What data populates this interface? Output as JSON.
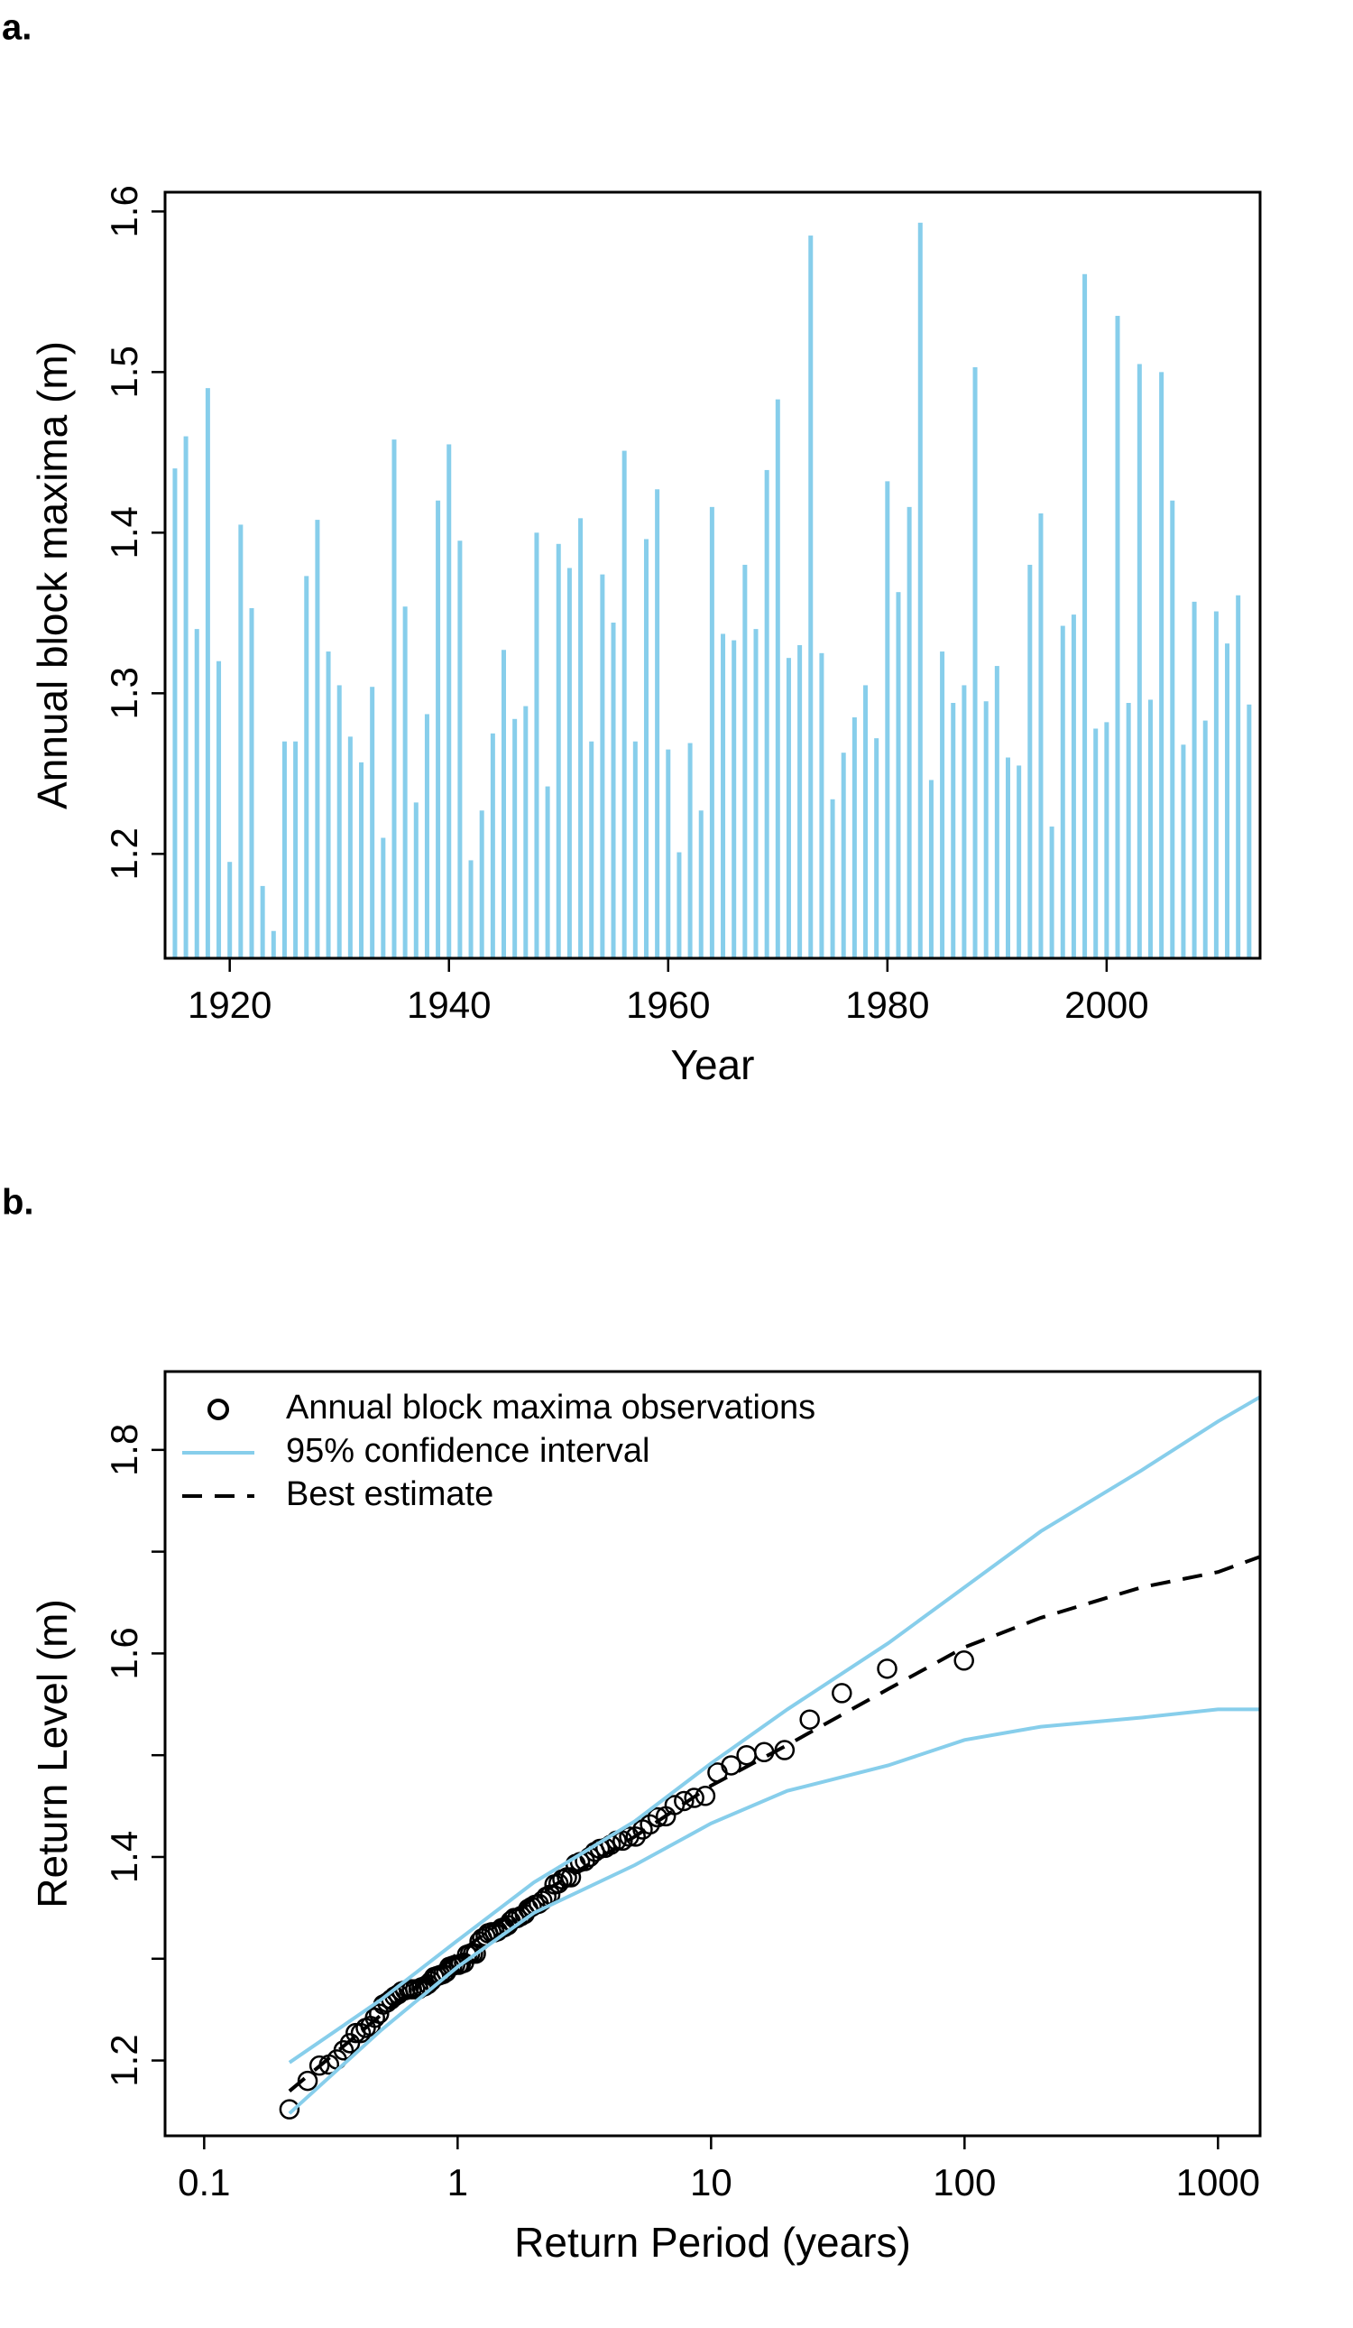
{
  "chart_data": [
    {
      "type": "bar",
      "panel_label": "a.",
      "xlabel": "Year",
      "ylabel": "Annual block maxima (m)",
      "color": "#87ceeb",
      "x": [
        1915,
        1916,
        1917,
        1918,
        1919,
        1920,
        1921,
        1922,
        1923,
        1924,
        1925,
        1926,
        1927,
        1928,
        1929,
        1930,
        1931,
        1932,
        1933,
        1934,
        1935,
        1936,
        1937,
        1938,
        1939,
        1940,
        1941,
        1942,
        1943,
        1944,
        1945,
        1946,
        1947,
        1948,
        1949,
        1950,
        1951,
        1952,
        1953,
        1954,
        1955,
        1956,
        1957,
        1958,
        1959,
        1960,
        1961,
        1962,
        1963,
        1964,
        1965,
        1966,
        1967,
        1968,
        1969,
        1970,
        1971,
        1972,
        1973,
        1974,
        1975,
        1976,
        1977,
        1978,
        1979,
        1980,
        1981,
        1982,
        1983,
        1984,
        1985,
        1986,
        1987,
        1988,
        1989,
        1990,
        1991,
        1992,
        1993,
        1994,
        1995,
        1996,
        1997,
        1998,
        1999,
        2000,
        2001,
        2002,
        2003,
        2004,
        2005,
        2006,
        2007,
        2008,
        2009,
        2010,
        2011,
        2012,
        2013
      ],
      "values": [
        1.44,
        1.46,
        1.34,
        1.49,
        1.32,
        1.195,
        1.405,
        1.353,
        1.18,
        1.152,
        1.27,
        1.27,
        1.373,
        1.408,
        1.326,
        1.305,
        1.273,
        1.257,
        1.304,
        1.21,
        1.458,
        1.354,
        1.232,
        1.287,
        1.42,
        1.455,
        1.395,
        1.196,
        1.227,
        1.275,
        1.327,
        1.284,
        1.292,
        1.4,
        1.242,
        1.393,
        1.378,
        1.409,
        1.27,
        1.374,
        1.344,
        1.451,
        1.27,
        1.396,
        1.427,
        1.265,
        1.201,
        1.269,
        1.227,
        1.416,
        1.337,
        1.333,
        1.38,
        1.34,
        1.439,
        1.483,
        1.322,
        1.33,
        1.585,
        1.325,
        1.234,
        1.263,
        1.285,
        1.305,
        1.272,
        1.432,
        1.363,
        1.416,
        1.593,
        1.246,
        1.326,
        1.294,
        1.305,
        1.503,
        1.295,
        1.317,
        1.26,
        1.255,
        1.38,
        1.412,
        1.217,
        1.342,
        1.349,
        1.561,
        1.278,
        1.282,
        1.535,
        1.294,
        1.505,
        1.296,
        1.5,
        1.42,
        1.268,
        1.357,
        1.283,
        1.351,
        1.331,
        1.361,
        1.293
      ],
      "xlim": [
        1914.1,
        2014.0
      ],
      "xticks": [
        1920,
        1940,
        1960,
        1980,
        2000
      ],
      "ylim": [
        1.135,
        1.612
      ],
      "yticks": [
        1.2,
        1.3,
        1.4,
        1.5,
        1.6
      ]
    },
    {
      "type": "scatter",
      "panel_label": "b.",
      "xlabel": "Return Period (years)",
      "ylabel": "Return Level (m)",
      "xlog": true,
      "legend": "top-left",
      "xlim": [
        0.0701,
        1466
      ],
      "xticks": [
        0.1,
        1,
        10,
        100,
        1000
      ],
      "ylim": [
        1.126,
        1.877
      ],
      "yticks": [
        1.2,
        1.4,
        1.6,
        1.8
      ],
      "yminorticks": [
        1.3,
        1.5,
        1.7
      ],
      "series": [
        {
          "name": "Annual block maxima observations",
          "mark": "points",
          "color": "#000000",
          "x": [
            0.217,
            0.256,
            0.285,
            0.311,
            0.334,
            0.355,
            0.376,
            0.396,
            0.415,
            0.434,
            0.453,
            0.472,
            0.49,
            0.509,
            0.527,
            0.546,
            0.564,
            0.583,
            0.602,
            0.621,
            0.641,
            0.66,
            0.68,
            0.701,
            0.721,
            0.742,
            0.764,
            0.786,
            0.808,
            0.831,
            0.854,
            0.878,
            0.902,
            0.927,
            0.953,
            0.979,
            1.01,
            1.03,
            1.06,
            1.09,
            1.12,
            1.15,
            1.18,
            1.22,
            1.25,
            1.29,
            1.32,
            1.36,
            1.4,
            1.44,
            1.49,
            1.53,
            1.58,
            1.62,
            1.67,
            1.72,
            1.78,
            1.84,
            1.9,
            1.96,
            2.02,
            2.09,
            2.16,
            2.24,
            2.32,
            2.41,
            2.5,
            2.59,
            2.7,
            2.8,
            2.92,
            3.04,
            3.18,
            3.32,
            3.48,
            3.64,
            3.83,
            4.02,
            4.24,
            4.48,
            4.75,
            5.04,
            5.37,
            5.74,
            6.15,
            6.63,
            7.18,
            7.82,
            8.58,
            9.49,
            10.6,
            12,
            13.8,
            16.2,
            19.5,
            24.5,
            32.8,
            49.5,
            99.5
          ],
          "values": [
            1.152,
            1.18,
            1.195,
            1.196,
            1.201,
            1.21,
            1.217,
            1.227,
            1.227,
            1.232,
            1.234,
            1.242,
            1.246,
            1.255,
            1.257,
            1.26,
            1.263,
            1.265,
            1.268,
            1.269,
            1.27,
            1.27,
            1.27,
            1.27,
            1.272,
            1.273,
            1.275,
            1.278,
            1.282,
            1.283,
            1.284,
            1.285,
            1.287,
            1.292,
            1.293,
            1.294,
            1.294,
            1.295,
            1.296,
            1.304,
            1.305,
            1.305,
            1.305,
            1.317,
            1.32,
            1.322,
            1.325,
            1.326,
            1.326,
            1.327,
            1.33,
            1.331,
            1.333,
            1.337,
            1.34,
            1.34,
            1.342,
            1.344,
            1.349,
            1.351,
            1.353,
            1.354,
            1.357,
            1.361,
            1.363,
            1.373,
            1.374,
            1.378,
            1.38,
            1.38,
            1.393,
            1.395,
            1.396,
            1.4,
            1.405,
            1.408,
            1.409,
            1.412,
            1.416,
            1.416,
            1.42,
            1.42,
            1.427,
            1.432,
            1.439,
            1.44,
            1.451,
            1.455,
            1.458,
            1.46,
            1.483,
            1.49,
            1.5,
            1.503,
            1.505,
            1.535,
            1.561,
            1.585,
            1.593
          ]
        },
        {
          "name": "95% confidence interval",
          "mark": "band",
          "color": "#87ceeb",
          "x": [
            0.217,
            0.5,
            1,
            2,
            5,
            10,
            20,
            50,
            100,
            200,
            500,
            1000,
            1466
          ],
          "upper": [
            1.198,
            1.26,
            1.318,
            1.375,
            1.435,
            1.492,
            1.545,
            1.61,
            1.665,
            1.72,
            1.78,
            1.828,
            1.852
          ],
          "lower": [
            1.148,
            1.23,
            1.292,
            1.345,
            1.392,
            1.433,
            1.465,
            1.49,
            1.515,
            1.528,
            1.537,
            1.545,
            1.545
          ]
        },
        {
          "name": "Best estimate",
          "mark": "line",
          "dash": true,
          "color": "#000000",
          "x": [
            0.217,
            0.5,
            1,
            2,
            5,
            10,
            20,
            50,
            100,
            200,
            500,
            1000,
            1466
          ],
          "values": [
            1.17,
            1.245,
            1.305,
            1.36,
            1.42,
            1.47,
            1.51,
            1.565,
            1.606,
            1.635,
            1.665,
            1.68,
            1.695
          ]
        }
      ]
    }
  ]
}
